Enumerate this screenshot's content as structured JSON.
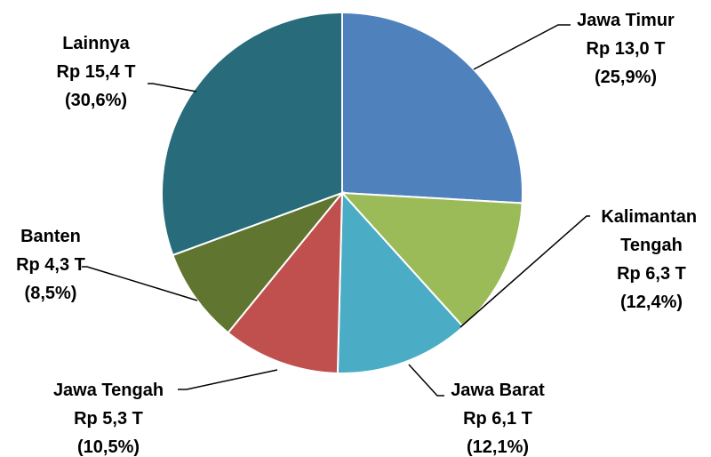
{
  "chart_data": {
    "type": "pie",
    "start_angle_deg": 0,
    "direction": "clockwise",
    "slices": [
      {
        "label": "Jawa Timur",
        "value_text": "Rp 13,0 T",
        "percent_text": "(25,9%)",
        "value": 13.0,
        "percent": 25.9,
        "color": "#4f81bd"
      },
      {
        "label": "Kalimantan Tengah",
        "value_text": "Rp 6,3 T",
        "percent_text": "(12,4%)",
        "value": 6.3,
        "percent": 12.4,
        "color": "#9bbb59"
      },
      {
        "label": "Jawa Barat",
        "value_text": "Rp 6,1 T",
        "percent_text": "(12,1%)",
        "value": 6.1,
        "percent": 12.1,
        "color": "#4bacc6"
      },
      {
        "label": "Jawa Tengah",
        "value_text": "Rp 5,3 T",
        "percent_text": "(10,5%)",
        "value": 5.3,
        "percent": 10.5,
        "color": "#c0504d"
      },
      {
        "label": "Banten",
        "value_text": "Rp 4,3 T",
        "percent_text": "(8,5%)",
        "value": 4.3,
        "percent": 8.5,
        "color": "#607530"
      },
      {
        "label": "Lainnya",
        "value_text": "Rp 15,4 T",
        "percent_text": "(30,6%)",
        "value": 15.4,
        "percent": 30.6,
        "color": "#286b7b"
      }
    ]
  }
}
